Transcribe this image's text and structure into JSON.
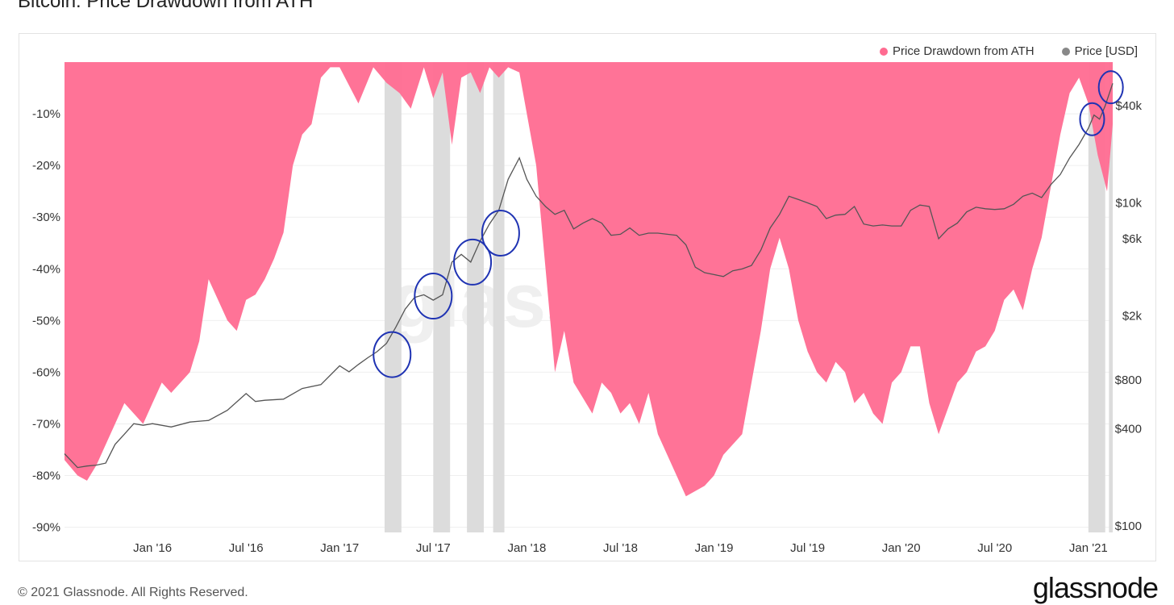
{
  "header": {
    "title": "Bitcoin: Price Drawdown from ATH"
  },
  "footer": {
    "copyright": "© 2021 Glassnode. All Rights Reserved.",
    "brand": "glassnode"
  },
  "watermark": "glass",
  "colors": {
    "drawdown": "#ff6b91",
    "price": "#555555",
    "highlight_band": "#dcdcdc",
    "circle": "#1f33b3"
  },
  "chart_data": {
    "type": "area",
    "title": "Bitcoin: Price Drawdown from ATH",
    "legend": {
      "position": "top-right",
      "entries": [
        {
          "name": "Price Drawdown from ATH",
          "color": "#ff6b91"
        },
        {
          "name": "Price [USD]",
          "color": "#888888"
        }
      ]
    },
    "x_ticks": [
      "Jan '16",
      "Jul '16",
      "Jan '17",
      "Jul '17",
      "Jan '18",
      "Jul '18",
      "Jan '19",
      "Jul '19",
      "Jan '20",
      "Jul '20",
      "Jan '21"
    ],
    "x_tick_values": [
      2016.0,
      2016.5,
      2017.0,
      2017.5,
      2018.0,
      2018.5,
      2019.0,
      2019.5,
      2020.0,
      2020.5,
      2021.0
    ],
    "xlim": [
      2015.53,
      2021.13
    ],
    "y_left": {
      "label": "",
      "ticks": [
        "-10%",
        "-20%",
        "-30%",
        "-40%",
        "-50%",
        "-60%",
        "-70%",
        "-80%",
        "-90%"
      ],
      "tick_values": [
        -10,
        -20,
        -30,
        -40,
        -50,
        -60,
        -70,
        -80,
        -90
      ],
      "ylim": [
        -91,
        0
      ]
    },
    "y_right": {
      "label": "",
      "scale": "log",
      "ticks": [
        "$40k",
        "$10k",
        "$6k",
        "$2k",
        "$800",
        "$400",
        "$100"
      ],
      "tick_values": [
        40000,
        10000,
        6000,
        2000,
        800,
        400,
        100
      ]
    },
    "series": [
      {
        "name": "Price Drawdown from ATH",
        "axis": "left",
        "x": [
          2015.53,
          2015.6,
          2015.65,
          2015.7,
          2015.75,
          2015.8,
          2015.85,
          2015.9,
          2015.95,
          2016.0,
          2016.05,
          2016.1,
          2016.15,
          2016.2,
          2016.25,
          2016.3,
          2016.35,
          2016.4,
          2016.45,
          2016.5,
          2016.55,
          2016.6,
          2016.65,
          2016.7,
          2016.75,
          2016.8,
          2016.85,
          2016.9,
          2016.95,
          2017.0,
          2017.1,
          2017.18,
          2017.25,
          2017.32,
          2017.38,
          2017.45,
          2017.5,
          2017.55,
          2017.6,
          2017.65,
          2017.7,
          2017.75,
          2017.8,
          2017.85,
          2017.9,
          2017.96,
          2018.0,
          2018.05,
          2018.1,
          2018.15,
          2018.2,
          2018.25,
          2018.3,
          2018.35,
          2018.4,
          2018.45,
          2018.5,
          2018.55,
          2018.6,
          2018.65,
          2018.7,
          2018.75,
          2018.8,
          2018.85,
          2018.9,
          2018.95,
          2019.0,
          2019.05,
          2019.1,
          2019.15,
          2019.2,
          2019.25,
          2019.3,
          2019.35,
          2019.4,
          2019.45,
          2019.5,
          2019.55,
          2019.6,
          2019.65,
          2019.7,
          2019.75,
          2019.8,
          2019.85,
          2019.9,
          2019.95,
          2020.0,
          2020.05,
          2020.1,
          2020.15,
          2020.2,
          2020.25,
          2020.3,
          2020.35,
          2020.4,
          2020.45,
          2020.5,
          2020.55,
          2020.6,
          2020.65,
          2020.7,
          2020.75,
          2020.8,
          2020.85,
          2020.9,
          2020.95,
          2021.0,
          2021.05,
          2021.1,
          2021.13
        ],
        "values": [
          -77,
          -80,
          -81,
          -78,
          -74,
          -70,
          -66,
          -68,
          -70,
          -66,
          -62,
          -64,
          -62,
          -60,
          -54,
          -42,
          -46,
          -50,
          -52,
          -46,
          -45,
          -42,
          -38,
          -33,
          -20,
          -14,
          -12,
          -3,
          -1,
          -1,
          -8,
          -1,
          -4,
          -6,
          -9,
          -1,
          -7,
          -2,
          -16,
          -3,
          -2,
          -6,
          -1,
          -3,
          -1,
          -2,
          -10,
          -20,
          -40,
          -60,
          -52,
          -62,
          -65,
          -68,
          -62,
          -64,
          -68,
          -66,
          -70,
          -64,
          -72,
          -76,
          -80,
          -84,
          -83,
          -82,
          -80,
          -76,
          -74,
          -72,
          -62,
          -52,
          -40,
          -34,
          -40,
          -50,
          -56,
          -60,
          -62,
          -58,
          -60,
          -66,
          -64,
          -68,
          -70,
          -62,
          -60,
          -55,
          -55,
          -66,
          -72,
          -67,
          -62,
          -60,
          -56,
          -55,
          -52,
          -46,
          -44,
          -48,
          -40,
          -34,
          -24,
          -14,
          -6,
          -3,
          -8,
          -18,
          -25,
          -12
        ]
      },
      {
        "name": "Price [USD]",
        "axis": "right",
        "scale": "log",
        "x": [
          2015.53,
          2015.6,
          2015.65,
          2015.7,
          2015.75,
          2015.8,
          2015.85,
          2015.9,
          2015.95,
          2016.0,
          2016.1,
          2016.2,
          2016.3,
          2016.4,
          2016.5,
          2016.55,
          2016.6,
          2016.7,
          2016.8,
          2016.9,
          2017.0,
          2017.05,
          2017.1,
          2017.15,
          2017.2,
          2017.25,
          2017.3,
          2017.35,
          2017.4,
          2017.45,
          2017.5,
          2017.55,
          2017.6,
          2017.65,
          2017.7,
          2017.75,
          2017.8,
          2017.85,
          2017.9,
          2017.96,
          2018.0,
          2018.05,
          2018.1,
          2018.15,
          2018.2,
          2018.25,
          2018.3,
          2018.35,
          2018.4,
          2018.45,
          2018.5,
          2018.55,
          2018.6,
          2018.65,
          2018.7,
          2018.75,
          2018.8,
          2018.85,
          2018.9,
          2018.95,
          2019.0,
          2019.05,
          2019.1,
          2019.15,
          2019.2,
          2019.25,
          2019.3,
          2019.35,
          2019.4,
          2019.45,
          2019.5,
          2019.55,
          2019.6,
          2019.65,
          2019.7,
          2019.75,
          2019.8,
          2019.85,
          2019.9,
          2019.95,
          2020.0,
          2020.05,
          2020.1,
          2020.15,
          2020.2,
          2020.25,
          2020.3,
          2020.35,
          2020.4,
          2020.45,
          2020.5,
          2020.55,
          2020.6,
          2020.65,
          2020.7,
          2020.75,
          2020.8,
          2020.85,
          2020.9,
          2020.95,
          2021.0,
          2021.03,
          2021.06,
          2021.09,
          2021.13
        ],
        "values": [
          280,
          230,
          235,
          238,
          245,
          320,
          370,
          430,
          420,
          430,
          410,
          440,
          450,
          520,
          660,
          590,
          600,
          610,
          710,
          750,
          980,
          900,
          1000,
          1100,
          1200,
          1350,
          1700,
          2200,
          2600,
          2700,
          2500,
          2700,
          4300,
          4800,
          4300,
          5800,
          7400,
          9000,
          14000,
          19000,
          14000,
          11000,
          9500,
          8500,
          9000,
          6900,
          7500,
          8000,
          7500,
          6300,
          6400,
          7000,
          6300,
          6500,
          6500,
          6400,
          6300,
          5500,
          4000,
          3700,
          3600,
          3500,
          3800,
          3900,
          4100,
          5100,
          7000,
          8500,
          11000,
          10500,
          10000,
          9500,
          8000,
          8400,
          8500,
          9500,
          7400,
          7200,
          7300,
          7200,
          7200,
          9000,
          9700,
          9500,
          6000,
          6900,
          7500,
          8800,
          9400,
          9200,
          9100,
          9200,
          9800,
          11000,
          11500,
          10800,
          13000,
          15000,
          19000,
          23000,
          29000,
          35000,
          33000,
          40000,
          55000
        ]
      }
    ],
    "highlight_bands": [
      [
        2017.24,
        2017.33
      ],
      [
        2017.5,
        2017.59
      ],
      [
        2017.68,
        2017.77
      ],
      [
        2017.82,
        2017.88
      ],
      [
        2021.0,
        2021.09
      ],
      [
        2021.11,
        2021.13
      ]
    ],
    "annotations": [
      {
        "type": "circle",
        "x": 2017.28,
        "price": 1150
      },
      {
        "type": "circle",
        "x": 2017.5,
        "price": 2650
      },
      {
        "type": "circle",
        "x": 2017.71,
        "price": 4300
      },
      {
        "type": "circle",
        "x": 2017.86,
        "price": 6500
      },
      {
        "type": "circle",
        "x": 2021.02,
        "price": 33000
      },
      {
        "type": "circle",
        "x": 2021.12,
        "price": 52000
      }
    ]
  }
}
